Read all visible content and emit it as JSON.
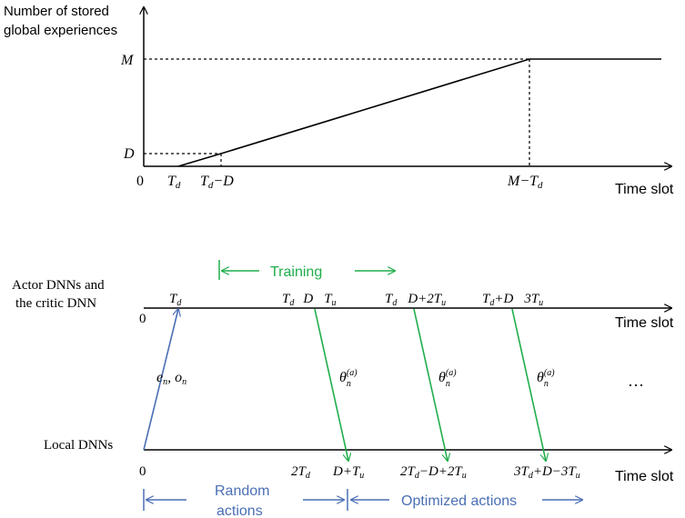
{
  "top": {
    "y_axis_label_line1": "Number of stored",
    "y_axis_label_line2": "global experiences",
    "y_M": "M",
    "y_D": "D",
    "origin": "0",
    "x_Td": "T",
    "x_Td_sub": "d",
    "x_TdD": "T",
    "x_TdD_sub": "d",
    "x_TdD_rest": "−D",
    "x_MTd": "M−T",
    "x_MTd_sub": "d",
    "x_axis_label": "Time slot"
  },
  "bottom": {
    "training_label": "Training",
    "actor_label_line1": "Actor DNNs and",
    "actor_label_line2": "the critic DNN",
    "local_label": "Local DNNs",
    "origin_upper": "0",
    "origin_lower": "0",
    "time_slot_upper": "Time slot",
    "time_slot_lower": "Time slot",
    "upper_tick_Td": "T",
    "upper_tick_Td_sub": "d",
    "upper_tick_2": "T",
    "upper_tick_2_sub": "d",
    "upper_tick_2_D": "D",
    "upper_tick_2_Tu": "T",
    "upper_tick_2_Tu_sub": "u",
    "upper_tick_3": "T",
    "upper_tick_3_sub": "d",
    "upper_tick_3_rest": "D+2T",
    "upper_tick_3_rest_sub": "u",
    "upper_tick_4": "T",
    "upper_tick_4_sub": "d",
    "upper_tick_4_rest": "+D",
    "upper_tick_4_3Tu": "3T",
    "upper_tick_4_3Tu_sub": "u",
    "upload_label": "e",
    "upload_label_sub": "n",
    "upload_label_sep": ", o",
    "upload_label_sub2": "n",
    "theta1": "θ",
    "theta1_sub": "n",
    "theta1_sup": "(a)",
    "theta2": "θ",
    "theta2_sub": "n",
    "theta2_sup": "(a)",
    "theta3": "θ",
    "theta3_sub": "n",
    "theta3_sup": "(a)",
    "ellipsis": "…",
    "lower_tick_1": "2T",
    "lower_tick_1_sub": "d",
    "lower_tick_2": "D+T",
    "lower_tick_2_sub": "u",
    "lower_tick_3": "2T",
    "lower_tick_3_sub": "d",
    "lower_tick_3_rest": "−D+2T",
    "lower_tick_3_rest_sub": "u",
    "lower_tick_4": "3T",
    "lower_tick_4_sub": "d",
    "lower_tick_4_rest": "+D−3T",
    "lower_tick_4_rest_sub": "u",
    "random_line1": "Random",
    "random_line2": "actions",
    "optimized_label": "Optimized actions"
  },
  "colors": {
    "green": "#1fae4b",
    "blue": "#4a6fb5",
    "black": "#000000"
  }
}
